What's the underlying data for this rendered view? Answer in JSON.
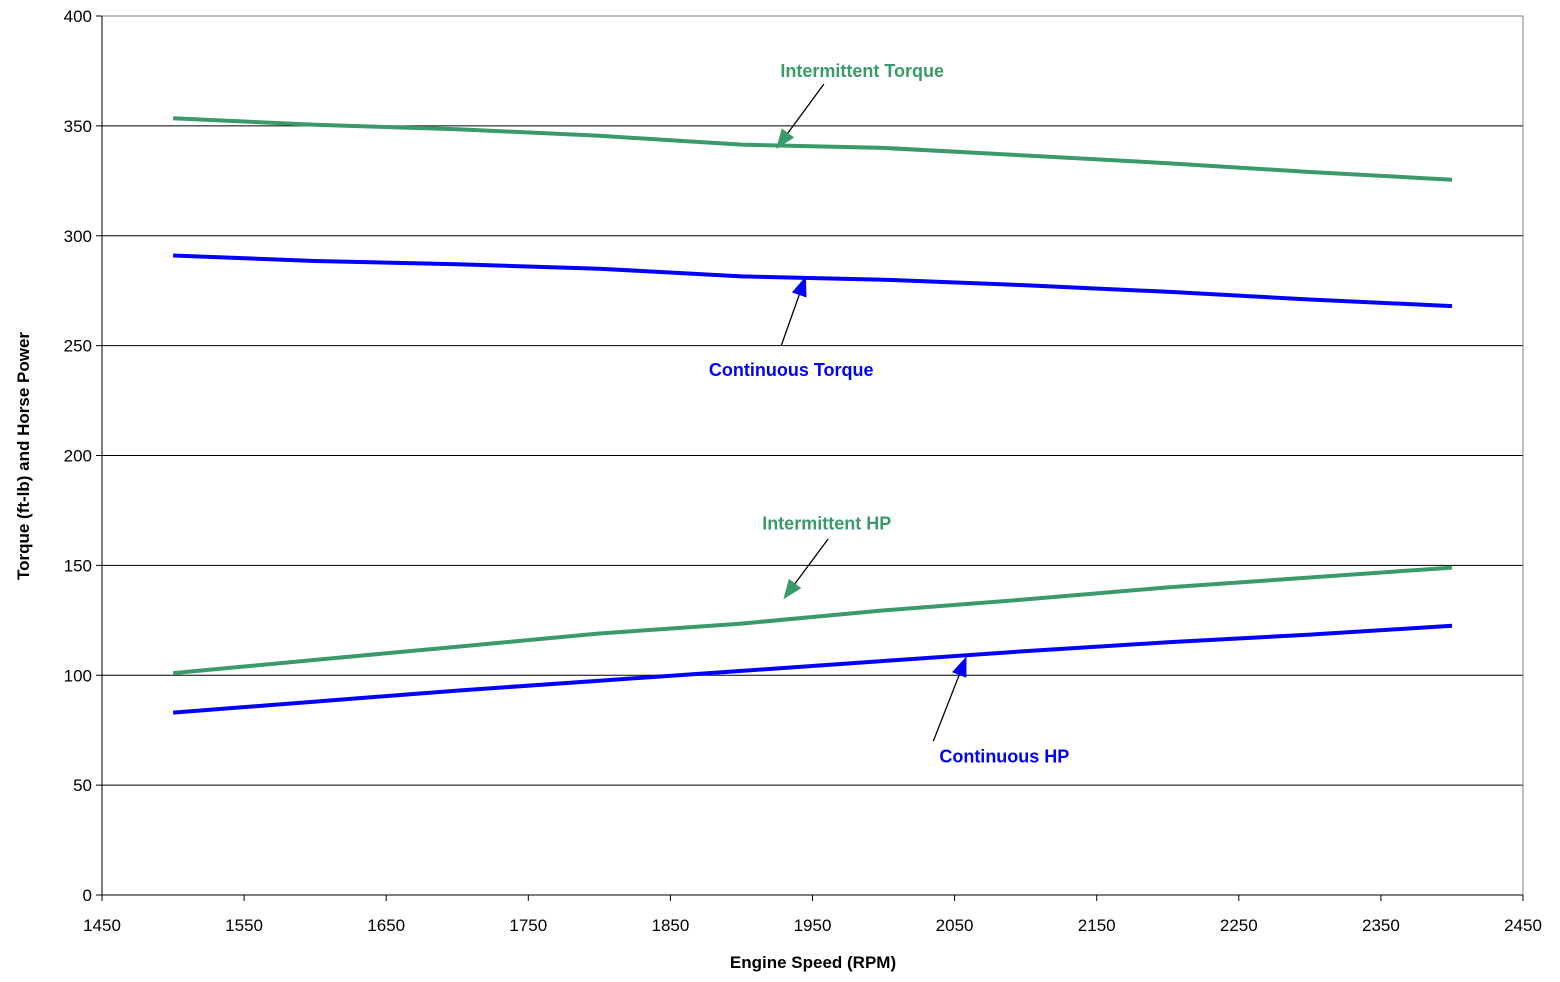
{
  "chart_data": {
    "type": "line",
    "title": "",
    "xlabel": "Engine Speed (RPM)",
    "ylabel": "Torque (ft-lb) and Horse Power",
    "xlim": [
      1450,
      2450
    ],
    "ylim": [
      0,
      400
    ],
    "x_ticks": [
      1450,
      1550,
      1650,
      1750,
      1850,
      1950,
      2050,
      2150,
      2250,
      2350,
      2450
    ],
    "y_ticks": [
      0,
      50,
      100,
      150,
      200,
      250,
      300,
      350,
      400
    ],
    "grid": "horizontal",
    "legend": "none",
    "series": [
      {
        "name": "Intermittent Torque",
        "color": "#3a9a6a",
        "x": [
          1500,
          1600,
          1700,
          1800,
          1900,
          2000,
          2100,
          2200,
          2300,
          2400
        ],
        "y": [
          353.5,
          350.5,
          348.5,
          345.5,
          341.5,
          340,
          336.5,
          333,
          329,
          325.5
        ]
      },
      {
        "name": "Continuous Torque",
        "color": "#0000ff",
        "x": [
          1500,
          1600,
          1700,
          1800,
          1900,
          2000,
          2100,
          2200,
          2300,
          2400
        ],
        "y": [
          291,
          288.5,
          287,
          285,
          281.5,
          280,
          277.5,
          274.5,
          271,
          268
        ]
      },
      {
        "name": "Intermittent HP",
        "color": "#3a9a6a",
        "x": [
          1500,
          1600,
          1700,
          1800,
          1900,
          2000,
          2100,
          2200,
          2300,
          2400
        ],
        "y": [
          101,
          107,
          113,
          119,
          123.5,
          129.5,
          134.5,
          140,
          144.5,
          149
        ]
      },
      {
        "name": "Continuous HP",
        "color": "#0000ff",
        "x": [
          1500,
          1600,
          1700,
          1800,
          1900,
          2000,
          2100,
          2200,
          2300,
          2400
        ],
        "y": [
          83,
          88,
          93,
          97.5,
          102,
          106.5,
          111,
          115,
          118.5,
          122.5
        ]
      }
    ],
    "annotations": [
      {
        "text": "Intermittent Torque",
        "color": "#3a9a6a",
        "text_at": [
          1985,
          375
        ],
        "arrow_from": [
          1958,
          369
        ],
        "arrow_to": [
          1925,
          340
        ]
      },
      {
        "text": "Continuous Torque",
        "color": "#0000ff",
        "text_at": [
          1935,
          239
        ],
        "arrow_from": [
          1928,
          250
        ],
        "arrow_to": [
          1945,
          281
        ]
      },
      {
        "text": "Intermittent HP",
        "color": "#3a9a6a",
        "text_at": [
          1960,
          169
        ],
        "arrow_from": [
          1961,
          162
        ],
        "arrow_to": [
          1930,
          135
        ]
      },
      {
        "text": "Continuous HP",
        "color": "#0000ff",
        "text_at": [
          2085,
          63
        ],
        "arrow_from": [
          2035,
          70
        ],
        "arrow_to": [
          2058,
          108
        ]
      }
    ]
  }
}
